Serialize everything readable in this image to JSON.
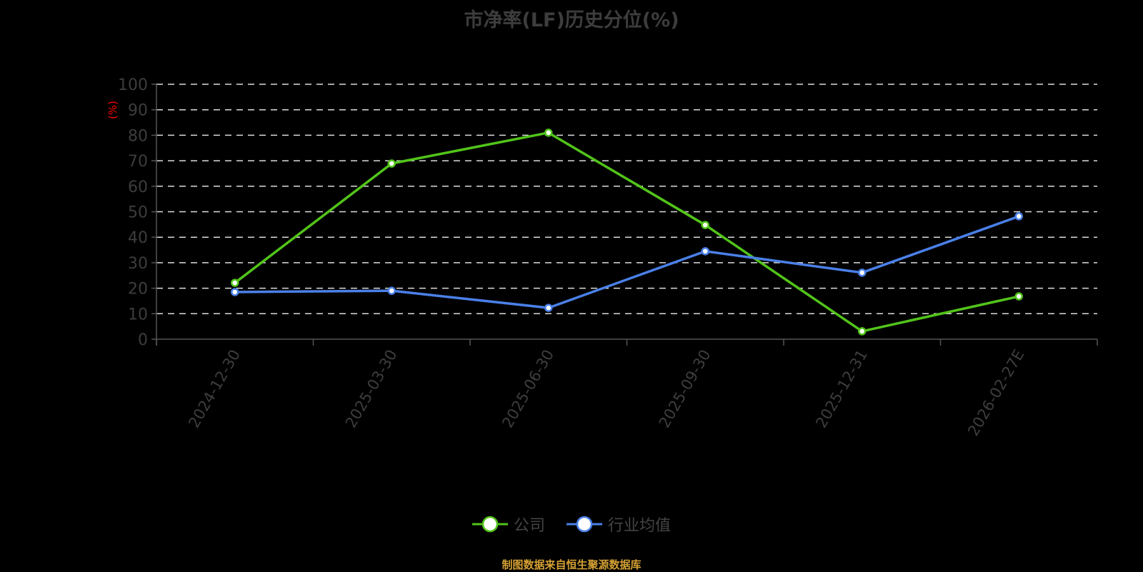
{
  "title": "市净率(LF)历史分位(%)",
  "y_unit_label": "(%)",
  "footer": "制图数据来自恒生聚源数据库",
  "colors": {
    "company": "#52c41a",
    "industry": "#4a80e8",
    "unit": "#ff0000",
    "footer": "#d4a033",
    "text": "#3d3d3d"
  },
  "legend": [
    {
      "name": "公司",
      "color": "#52c41a"
    },
    {
      "name": "行业均值",
      "color": "#4a80e8"
    }
  ],
  "chart_data": {
    "type": "line",
    "title": "市净率(LF)历史分位(%)",
    "xlabel": "",
    "ylabel": "(%)",
    "ylim": [
      0,
      100
    ],
    "yticks": [
      0,
      10,
      20,
      30,
      40,
      50,
      60,
      70,
      80,
      90,
      100
    ],
    "grid": "horizontal dashed",
    "legend_position": "bottom",
    "categories": [
      "2024-12-30",
      "2025-03-30",
      "2025-06-30",
      "2025-09-30",
      "2025-12-31",
      "2026-02-27E"
    ],
    "series": [
      {
        "name": "公司",
        "color": "#52c41a",
        "values": [
          22.1,
          68.9,
          81.0,
          44.8,
          3.1,
          16.8
        ]
      },
      {
        "name": "行业均值",
        "color": "#4a80e8",
        "values": [
          18.5,
          19.0,
          12.3,
          34.5,
          26.1,
          48.2
        ]
      }
    ]
  }
}
